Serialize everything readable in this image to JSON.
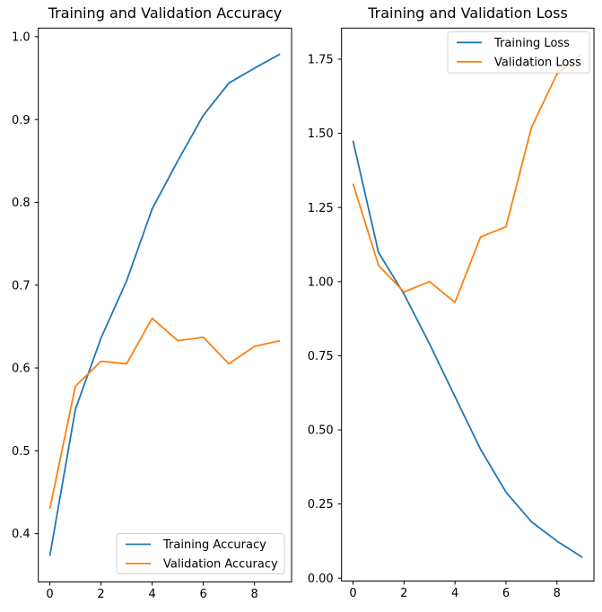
{
  "figure": {
    "background": "#ffffff",
    "accent_blue": "#1f77b4",
    "accent_orange": "#ff7f0e"
  },
  "chart_data": [
    {
      "type": "line",
      "title": "Training and Validation Accuracy",
      "xlabel": "",
      "ylabel": "",
      "grid": false,
      "x": [
        0,
        1,
        2,
        3,
        4,
        5,
        6,
        7,
        8,
        9
      ],
      "series": [
        {
          "name": "Training Accuracy",
          "color": "#1f77b4",
          "values": [
            0.373,
            0.55,
            0.636,
            0.705,
            0.792,
            0.85,
            0.905,
            0.944,
            0.962,
            0.979
          ]
        },
        {
          "name": "Validation Accuracy",
          "color": "#ff7f0e",
          "values": [
            0.43,
            0.578,
            0.608,
            0.605,
            0.66,
            0.633,
            0.637,
            0.605,
            0.626,
            0.633
          ]
        }
      ],
      "xlim": [
        -0.45,
        9.45
      ],
      "ylim": [
        0.3416,
        1.0104
      ],
      "xticks": {
        "values": [
          0,
          2,
          4,
          6,
          8
        ],
        "labels": [
          "0",
          "2",
          "4",
          "6",
          "8"
        ]
      },
      "yticks": {
        "values": [
          0.4,
          0.5,
          0.6,
          0.7,
          0.8,
          0.9,
          1.0
        ],
        "labels": [
          "0.4",
          "0.5",
          "0.6",
          "0.7",
          "0.8",
          "0.9",
          "1.0"
        ]
      },
      "legend": {
        "position": "lower right",
        "entries": [
          "Training Accuracy",
          "Validation Accuracy"
        ]
      }
    },
    {
      "type": "line",
      "title": "Training and Validation Loss",
      "xlabel": "",
      "ylabel": "",
      "grid": false,
      "x": [
        0,
        1,
        2,
        3,
        4,
        5,
        6,
        7,
        8,
        9
      ],
      "series": [
        {
          "name": "Training Loss",
          "color": "#1f77b4",
          "values": [
            1.475,
            1.098,
            0.958,
            0.79,
            0.612,
            0.435,
            0.29,
            0.19,
            0.125,
            0.07
          ]
        },
        {
          "name": "Validation Loss",
          "color": "#ff7f0e",
          "values": [
            1.33,
            1.055,
            0.965,
            1.0,
            0.93,
            1.15,
            1.185,
            1.52,
            1.7,
            1.77
          ]
        }
      ],
      "xlim": [
        -0.45,
        9.45
      ],
      "ylim": [
        -0.0098,
        1.8548
      ],
      "xticks": {
        "values": [
          0,
          2,
          4,
          6,
          8
        ],
        "labels": [
          "0",
          "2",
          "4",
          "6",
          "8"
        ]
      },
      "yticks": {
        "values": [
          0.0,
          0.25,
          0.5,
          0.75,
          1.0,
          1.25,
          1.5,
          1.75
        ],
        "labels": [
          "0.00",
          "0.25",
          "0.50",
          "0.75",
          "1.00",
          "1.25",
          "1.50",
          "1.75"
        ]
      },
      "legend": {
        "position": "upper right",
        "entries": [
          "Training Loss",
          "Validation Loss"
        ]
      }
    }
  ]
}
